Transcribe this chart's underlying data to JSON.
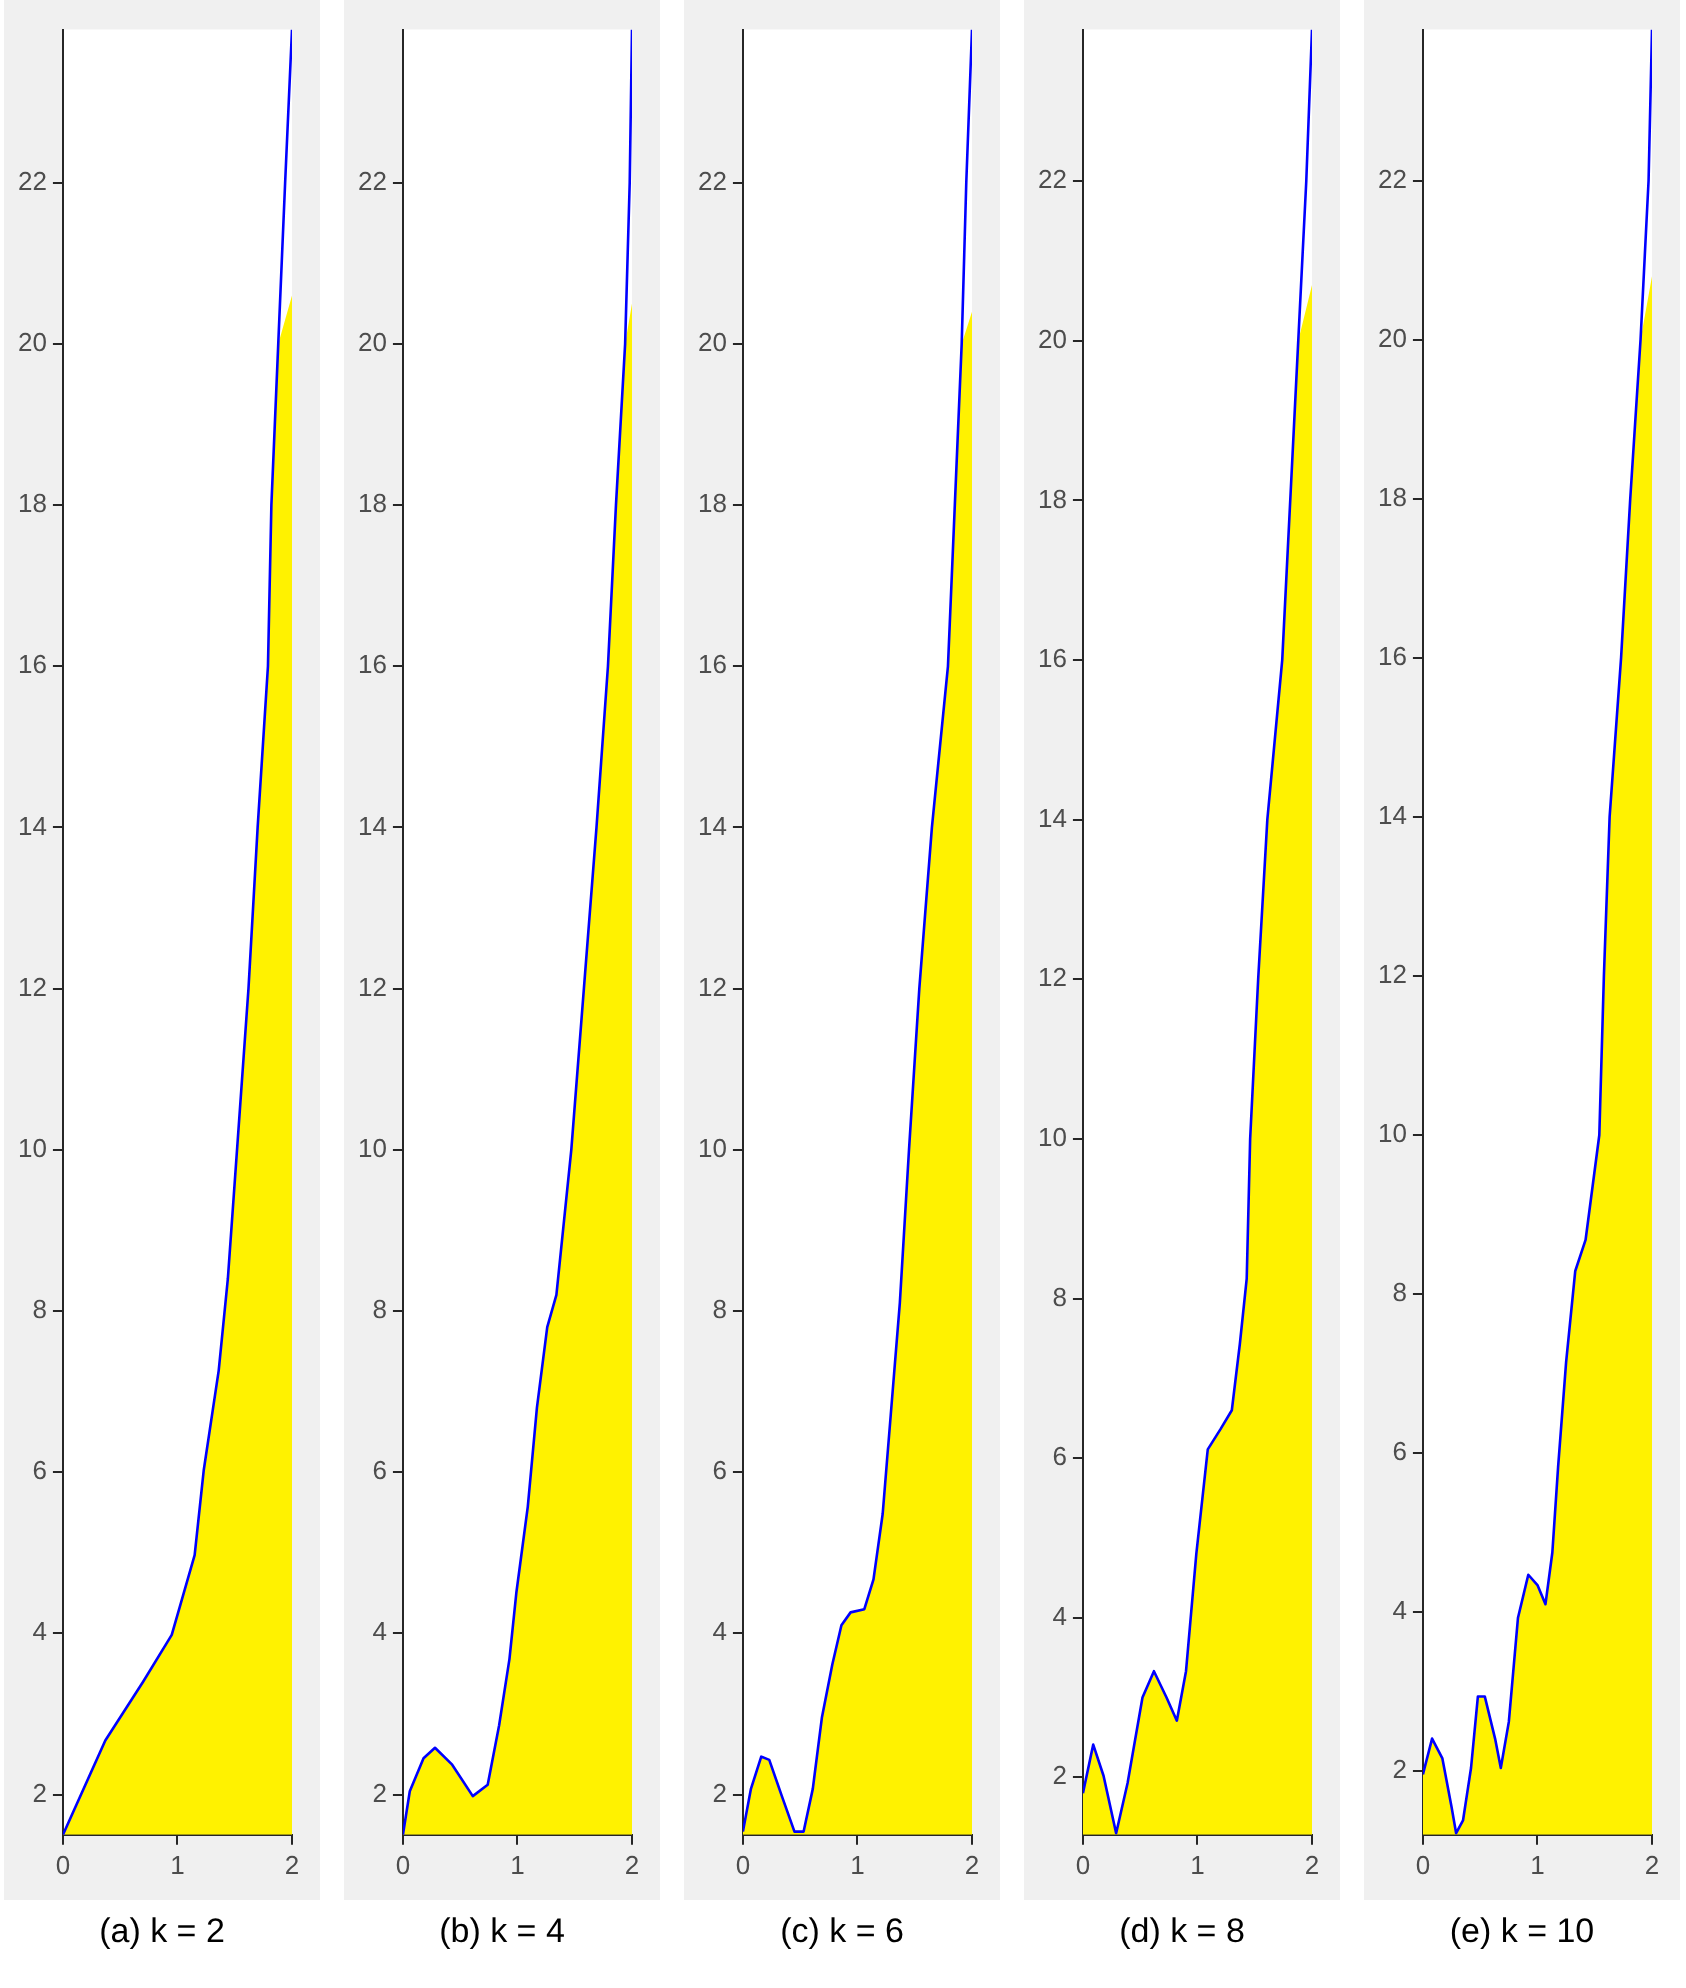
{
  "chart_data": [
    {
      "type": "line",
      "xlabel": "(a) k = 2",
      "xlim": [
        0,
        2
      ],
      "xticks": [
        0,
        1,
        2
      ],
      "ylim": [
        1.5,
        23.9
      ],
      "yticks": [
        2,
        4,
        6,
        8,
        10,
        12,
        14,
        16,
        18,
        20,
        22
      ],
      "marker": "none",
      "series": [
        {
          "type": "area",
          "color": "#fff200",
          "x": [
            0,
            0.37,
            0.7,
            0.95,
            1.15,
            1.23,
            1.36,
            1.44,
            1.52,
            1.62,
            1.7,
            1.79,
            1.82,
            1.88,
            2
          ],
          "values": [
            1.5,
            2.67,
            3.4,
            3.98,
            4.97,
            6.03,
            7.26,
            8.4,
            10,
            12,
            14,
            16,
            18,
            20,
            20.6
          ]
        },
        {
          "type": "line",
          "color": "#0000ff",
          "x": [
            0,
            0.37,
            0.7,
            0.95,
            1.15,
            1.23,
            1.36,
            1.44,
            1.52,
            1.62,
            1.7,
            1.79,
            1.82,
            1.88,
            1.94,
            2
          ],
          "values": [
            1.5,
            2.67,
            3.4,
            3.98,
            4.97,
            6.03,
            7.26,
            8.4,
            10,
            12,
            14,
            16,
            18,
            20,
            22,
            23.9
          ]
        }
      ]
    },
    {
      "type": "line",
      "xlabel": "(b) k = 4",
      "xlim": [
        0,
        2
      ],
      "xticks": [
        0,
        1,
        2
      ],
      "ylim": [
        1.5,
        23.9
      ],
      "yticks": [
        2,
        4,
        6,
        8,
        10,
        12,
        14,
        16,
        18,
        20,
        22
      ],
      "marker": "none",
      "series": [
        {
          "type": "area",
          "color": "#fff200",
          "x": [
            0,
            0.06,
            0.18,
            0.28,
            0.43,
            0.61,
            0.74,
            0.84,
            0.93,
            0.99,
            1.09,
            1.17,
            1.26,
            1.34,
            1.47,
            1.58,
            1.69,
            1.79,
            1.86,
            1.94,
            2
          ],
          "values": [
            1.5,
            2.04,
            2.45,
            2.58,
            2.37,
            1.98,
            2.12,
            2.86,
            3.68,
            4.5,
            5.57,
            6.8,
            7.8,
            8.2,
            10,
            12,
            14,
            16,
            18,
            20,
            20.5
          ]
        },
        {
          "type": "line",
          "color": "#0000ff",
          "x": [
            0,
            0.06,
            0.18,
            0.28,
            0.43,
            0.61,
            0.74,
            0.84,
            0.93,
            0.99,
            1.09,
            1.17,
            1.26,
            1.34,
            1.47,
            1.58,
            1.69,
            1.79,
            1.86,
            1.94,
            1.98,
            2
          ],
          "values": [
            1.5,
            2.04,
            2.45,
            2.58,
            2.37,
            1.98,
            2.12,
            2.86,
            3.68,
            4.5,
            5.57,
            6.8,
            7.8,
            8.2,
            10,
            12,
            14,
            16,
            18,
            20,
            22,
            23.9
          ]
        }
      ]
    },
    {
      "type": "line",
      "xlabel": "(c) k = 6",
      "xlim": [
        0,
        2
      ],
      "xticks": [
        0,
        1,
        2
      ],
      "ylim": [
        1.5,
        23.9
      ],
      "yticks": [
        2,
        4,
        6,
        8,
        10,
        12,
        14,
        16,
        18,
        20,
        22
      ],
      "marker": "none",
      "series": [
        {
          "type": "area",
          "color": "#fff200",
          "x": [
            0,
            0.07,
            0.16,
            0.23,
            0.34,
            0.45,
            0.53,
            0.61,
            0.69,
            0.78,
            0.86,
            0.94,
            1.06,
            1.14,
            1.22,
            1.29,
            1.37,
            1.45,
            1.54,
            1.65,
            1.79,
            1.85,
            1.91,
            2
          ],
          "values": [
            1.54,
            2.07,
            2.47,
            2.43,
            1.98,
            1.54,
            1.54,
            2.07,
            2.96,
            3.61,
            4.1,
            4.26,
            4.3,
            4.67,
            5.48,
            6.7,
            8.1,
            10,
            12,
            14,
            16,
            18,
            20,
            20.4
          ]
        },
        {
          "type": "line",
          "color": "#0000ff",
          "x": [
            0,
            0.07,
            0.16,
            0.23,
            0.34,
            0.45,
            0.53,
            0.61,
            0.69,
            0.78,
            0.86,
            0.94,
            1.06,
            1.14,
            1.22,
            1.29,
            1.37,
            1.45,
            1.54,
            1.65,
            1.79,
            1.85,
            1.91,
            1.95,
            2
          ],
          "values": [
            1.54,
            2.07,
            2.47,
            2.43,
            1.98,
            1.54,
            1.54,
            2.07,
            2.96,
            3.61,
            4.1,
            4.26,
            4.3,
            4.67,
            5.48,
            6.7,
            8.1,
            10,
            12,
            14,
            16,
            18,
            20,
            22,
            23.9
          ]
        }
      ]
    },
    {
      "type": "line",
      "xlabel": "(d) k = 8",
      "xlim": [
        0,
        2
      ],
      "xticks": [
        0,
        1,
        2
      ],
      "ylim": [
        1.28,
        23.9
      ],
      "yticks": [
        2,
        4,
        6,
        8,
        10,
        12,
        14,
        16,
        18,
        20,
        22
      ],
      "marker": "none",
      "series": [
        {
          "type": "area",
          "color": "#fff200",
          "x": [
            0,
            0.09,
            0.18,
            0.29,
            0.39,
            0.52,
            0.62,
            0.73,
            0.82,
            0.9,
            0.99,
            1.09,
            1.2,
            1.3,
            1.37,
            1.43,
            1.46,
            1.53,
            1.61,
            1.74,
            1.81,
            1.88,
            2
          ],
          "values": [
            1.8,
            2.41,
            2.02,
            1.3,
            1.93,
            3.0,
            3.33,
            3.0,
            2.71,
            3.33,
            4.8,
            6.11,
            6.36,
            6.6,
            7.43,
            8.25,
            10,
            12,
            14,
            16,
            18,
            20,
            20.7
          ]
        },
        {
          "type": "line",
          "color": "#0000ff",
          "x": [
            0,
            0.09,
            0.18,
            0.29,
            0.39,
            0.52,
            0.62,
            0.73,
            0.82,
            0.9,
            0.99,
            1.09,
            1.2,
            1.3,
            1.37,
            1.43,
            1.46,
            1.53,
            1.61,
            1.74,
            1.81,
            1.88,
            1.95,
            2
          ],
          "values": [
            1.8,
            2.41,
            2.02,
            1.3,
            1.93,
            3.0,
            3.33,
            3.0,
            2.71,
            3.33,
            4.8,
            6.11,
            6.36,
            6.6,
            7.43,
            8.25,
            10,
            12,
            14,
            16,
            18,
            20,
            22,
            23.9
          ]
        }
      ]
    },
    {
      "type": "line",
      "xlabel": "(e) k = 10",
      "xlim": [
        0,
        2
      ],
      "xticks": [
        0,
        1,
        2
      ],
      "ylim": [
        1.2,
        23.9
      ],
      "yticks": [
        2,
        4,
        6,
        8,
        10,
        12,
        14,
        16,
        18,
        20,
        22
      ],
      "marker": "none",
      "series": [
        {
          "type": "area",
          "color": "#fff200",
          "x": [
            0,
            0.08,
            0.17,
            0.25,
            0.29,
            0.35,
            0.42,
            0.48,
            0.54,
            0.63,
            0.68,
            0.75,
            0.83,
            0.92,
            1.0,
            1.07,
            1.13,
            1.18,
            1.25,
            1.33,
            1.42,
            1.54,
            1.58,
            1.63,
            1.73,
            1.81,
            1.9,
            2
          ],
          "values": [
            1.96,
            2.41,
            2.16,
            1.55,
            1.22,
            1.38,
            2.04,
            2.94,
            2.94,
            2.41,
            2.04,
            2.62,
            3.93,
            4.47,
            4.34,
            4.1,
            4.75,
            5.82,
            7.14,
            8.29,
            8.68,
            10,
            12,
            14,
            16,
            18,
            20,
            20.8
          ]
        },
        {
          "type": "line",
          "color": "#0000ff",
          "x": [
            0,
            0.08,
            0.17,
            0.25,
            0.29,
            0.35,
            0.42,
            0.48,
            0.54,
            0.63,
            0.68,
            0.75,
            0.83,
            0.92,
            1.0,
            1.07,
            1.13,
            1.18,
            1.25,
            1.33,
            1.42,
            1.54,
            1.58,
            1.63,
            1.73,
            1.81,
            1.9,
            1.97,
            2
          ],
          "values": [
            1.96,
            2.41,
            2.16,
            1.55,
            1.22,
            1.38,
            2.04,
            2.94,
            2.94,
            2.41,
            2.04,
            2.62,
            3.93,
            4.47,
            4.34,
            4.1,
            4.75,
            5.82,
            7.14,
            8.29,
            8.68,
            10,
            12,
            14,
            16,
            18,
            20,
            22,
            23.9
          ]
        }
      ]
    }
  ]
}
